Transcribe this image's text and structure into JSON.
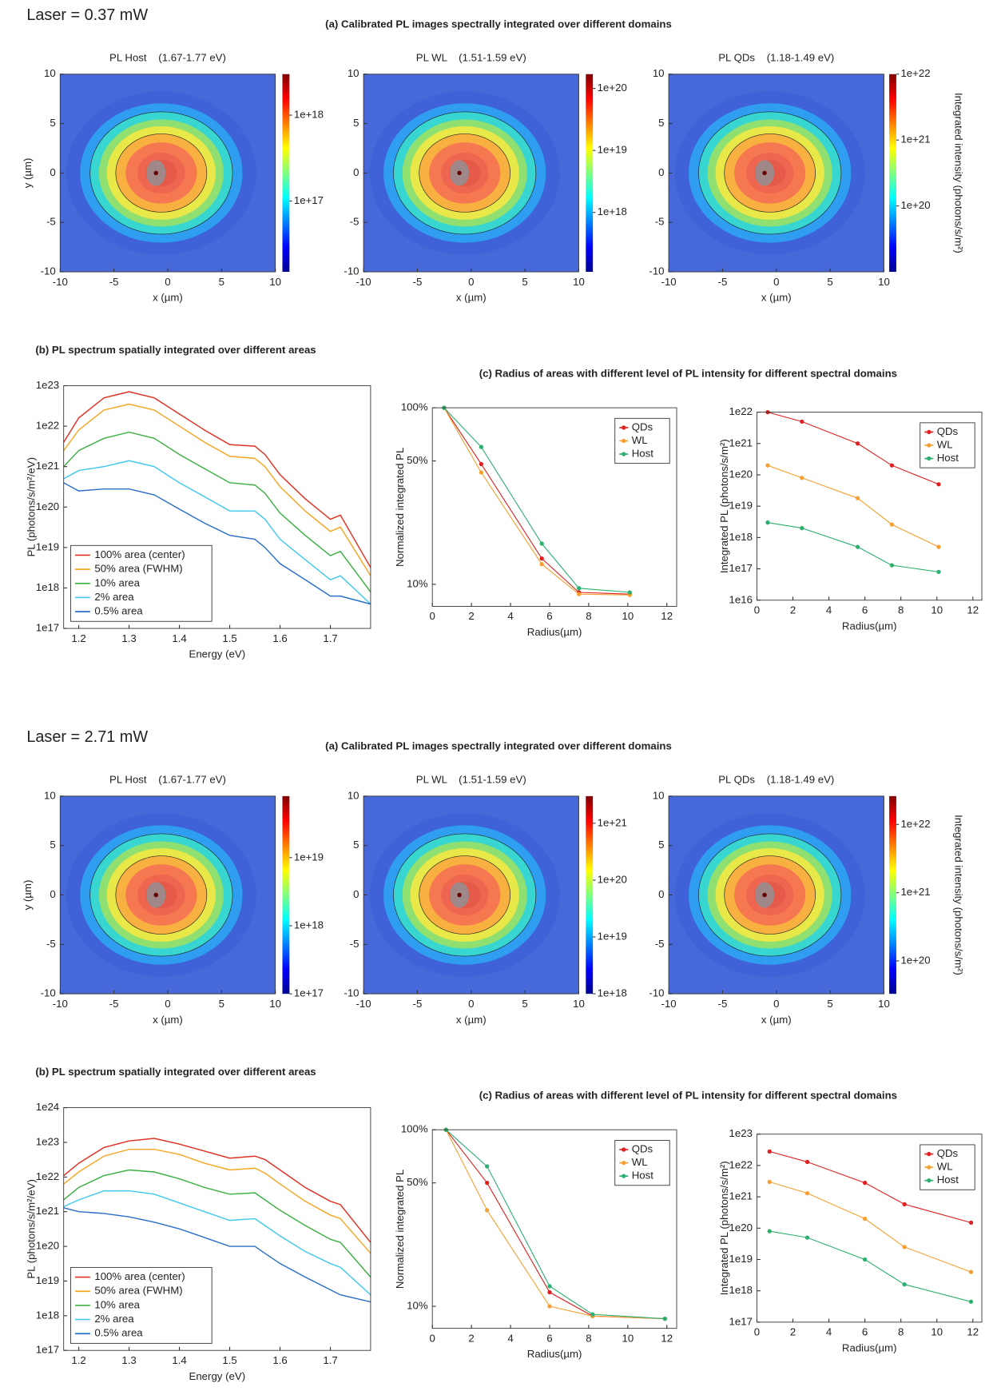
{
  "panels": [
    {
      "laser": "Laser = 0.37 mW",
      "heading_a": "(a) Calibrated PL images spectrally integrated over different domains",
      "heading_b": "(b) PL spectrum spatially integrated over different areas",
      "heading_c": "(c) Radius of areas with different level of PL intensity for different spectral domains"
    },
    {
      "laser": "Laser = 2.71 mW",
      "heading_a": "(a) Calibrated PL images spectrally integrated over different domains",
      "heading_b": "(b) PL spectrum spatially integrated over different areas",
      "heading_c": "(c) Radius of areas with different level of PL intensity for different spectral domains"
    }
  ],
  "chart_data": [
    {
      "type": "heatmap",
      "title": "PL Host    (1.67-1.77 eV)",
      "xlabel": "x (µm)",
      "ylabel": "y (µm)",
      "xlim": [
        -10,
        10
      ],
      "xticks": [
        -10,
        -5,
        0,
        5,
        10
      ],
      "ylim": [
        -10,
        10
      ],
      "yticks": [
        -10,
        -5,
        0,
        5,
        10
      ],
      "colorbar": {
        "log": true,
        "lim": [
          1.5e+16,
          3e+18
        ],
        "ticks": [
          {
            "value": 1e+17,
            "label": "1e+17"
          },
          {
            "value": 1e+18,
            "label": "1e+18"
          }
        ]
      }
    },
    {
      "type": "heatmap",
      "title": "PL WL    (1.51-1.59 eV)",
      "xlabel": "x (µm)",
      "xlim": [
        -10,
        10
      ],
      "xticks": [
        -10,
        -5,
        0,
        5,
        10
      ],
      "ylim": [
        -10,
        10
      ],
      "yticks": [
        -10,
        -5,
        0,
        5,
        10
      ],
      "colorbar": {
        "log": true,
        "lim": [
          1.1e+17,
          1.7e+20
        ],
        "ticks": [
          {
            "value": 1e+18,
            "label": "1e+18"
          },
          {
            "value": 1e+19,
            "label": "1e+19"
          },
          {
            "value": 1e+20,
            "label": "1e+20"
          }
        ]
      }
    },
    {
      "type": "heatmap",
      "title": "PL QDs    (1.18-1.49 eV)",
      "xlabel": "x (µm)",
      "xlim": [
        -10,
        10
      ],
      "xticks": [
        -10,
        -5,
        0,
        5,
        10
      ],
      "ylim": [
        -10,
        10
      ],
      "yticks": [
        -10,
        -5,
        0,
        5,
        10
      ],
      "colorbar": {
        "log": true,
        "lim": [
          1e+19,
          1e+22
        ],
        "label": "Integrated intensity (photons/s/m²)",
        "ticks": [
          {
            "value": 1e+20,
            "label": "1e+20"
          },
          {
            "value": 1e+21,
            "label": "1e+21"
          },
          {
            "value": 1e+22,
            "label": "1e+22"
          }
        ]
      }
    },
    {
      "type": "line",
      "xlabel": "Energy (eV)",
      "ylabel": "PL (photons/s/m²/eV)",
      "ylog": true,
      "legend": "lower left",
      "xlim": [
        1.17,
        1.78
      ],
      "xticks": [
        1.2,
        1.3,
        1.4,
        1.5,
        1.6,
        1.7
      ],
      "ylim": [
        1e+17,
        1e+23
      ],
      "yticks": [
        {
          "value": 1e+17,
          "label": "1e17"
        },
        {
          "value": 1e+18,
          "label": "1e18"
        },
        {
          "value": 1e+19,
          "label": "1e19"
        },
        {
          "value": 1e+20,
          "label": "1e20"
        },
        {
          "value": 1e+21,
          "label": "1e21"
        },
        {
          "value": 1e+22,
          "label": "1e22"
        },
        {
          "value": 1e+23,
          "label": "1e23"
        }
      ],
      "x": [
        1.17,
        1.2,
        1.25,
        1.3,
        1.35,
        1.4,
        1.45,
        1.5,
        1.55,
        1.57,
        1.6,
        1.65,
        1.7,
        1.72,
        1.78
      ],
      "series": [
        {
          "name": "100% area (center)",
          "color": "#e03020",
          "values": [
            4e+21,
            1.6e+22,
            5e+22,
            7.1e+22,
            5e+22,
            2e+22,
            8e+21,
            3.5e+21,
            3.2e+21,
            2e+21,
            6.3e+20,
            1.6e+20,
            5e+19,
            6.3e+19,
            3.2e+18
          ]
        },
        {
          "name": "50% area (FWHM)",
          "color": "#f5a623",
          "values": [
            2.5e+21,
            8e+21,
            2.5e+22,
            3.5e+22,
            2.5e+22,
            1e+22,
            4e+21,
            1.8e+21,
            1.6e+21,
            1e+21,
            3.2e+20,
            8e+19,
            2.5e+19,
            3.2e+19,
            2e+18
          ]
        },
        {
          "name": "10% area",
          "color": "#3cb043",
          "values": [
            1e+21,
            2.5e+21,
            5e+21,
            7.1e+21,
            5e+21,
            2e+21,
            8.9e+20,
            4e+20,
            3.5e+20,
            2.2e+20,
            7.1e+19,
            2e+19,
            6.3e+18,
            8e+18,
            8e+17
          ]
        },
        {
          "name": "2% area",
          "color": "#40c8f0",
          "values": [
            5e+20,
            8e+20,
            1e+21,
            1.4e+21,
            1e+21,
            4e+20,
            1.8e+20,
            8e+19,
            8e+19,
            5e+19,
            1.6e+19,
            5e+18,
            1.6e+18,
            2e+18,
            4e+17
          ]
        },
        {
          "name": "0.5% area",
          "color": "#2a6fc8",
          "values": [
            4e+20,
            2.5e+20,
            2.8e+20,
            2.8e+20,
            2e+20,
            8.9e+19,
            4e+19,
            2e+19,
            1.6e+19,
            1e+19,
            4e+18,
            1.6e+18,
            6.3e+17,
            6.3e+17,
            4e+17
          ]
        }
      ]
    },
    {
      "type": "line",
      "xlabel": "Radius(µm)",
      "ylabel": "Normalized integrated PL",
      "ylog": true,
      "legend": "upper right",
      "markers": true,
      "xlim": [
        0,
        12.5
      ],
      "xticks": [
        0,
        2,
        4,
        6,
        8,
        10,
        12
      ],
      "ylim": [
        7.5,
        100
      ],
      "yticks": [
        {
          "value": 10,
          "label": "10%"
        },
        {
          "value": 50,
          "label": "50%"
        },
        {
          "value": 100,
          "label": "100%"
        }
      ],
      "x": [
        0.6,
        2.5,
        5.6,
        7.5,
        10.1
      ],
      "series": [
        {
          "name": "QDs",
          "color": "#e02020",
          "values": [
            100,
            48,
            14,
            9,
            8.8
          ]
        },
        {
          "name": "WL",
          "color": "#f5a030",
          "values": [
            100,
            43,
            13,
            8.8,
            8.7
          ]
        },
        {
          "name": "Host",
          "color": "#2cb070",
          "values": [
            100,
            60,
            17,
            9.5,
            9
          ]
        }
      ]
    },
    {
      "type": "line",
      "xlabel": "Radius(µm)",
      "ylabel": "Integrated PL (photons/s/m²)",
      "ylog": true,
      "legend": "upper right",
      "markers": true,
      "xlim": [
        0,
        12.5
      ],
      "xticks": [
        0,
        2,
        4,
        6,
        8,
        10,
        12
      ],
      "ylim": [
        1e+16,
        1e+22
      ],
      "yticks": [
        {
          "value": 1e+16,
          "label": "1e16"
        },
        {
          "value": 1e+17,
          "label": "1e17"
        },
        {
          "value": 1e+18,
          "label": "1e18"
        },
        {
          "value": 1e+19,
          "label": "1e19"
        },
        {
          "value": 1e+20,
          "label": "1e20"
        },
        {
          "value": 1e+21,
          "label": "1e21"
        },
        {
          "value": 1e+22,
          "label": "1e22"
        }
      ],
      "x": [
        0.6,
        2.5,
        5.6,
        7.5,
        10.1
      ],
      "series": [
        {
          "name": "QDs",
          "color": "#e02020",
          "values": [
            1e+22,
            5e+21,
            1e+21,
            2e+20,
            5e+19
          ]
        },
        {
          "name": "WL",
          "color": "#f5a030",
          "values": [
            2e+20,
            8e+19,
            1.8e+19,
            2.6e+18,
            5e+17
          ]
        },
        {
          "name": "Host",
          "color": "#2cb070",
          "values": [
            3e+18,
            2e+18,
            5e+17,
            1.3e+17,
            8e+16
          ]
        }
      ]
    },
    {
      "type": "heatmap",
      "title": "PL Host    (1.67-1.77 eV)",
      "xlabel": "x (µm)",
      "ylabel": "y (µm)",
      "xlim": [
        -10,
        10
      ],
      "xticks": [
        -10,
        -5,
        0,
        5,
        10
      ],
      "ylim": [
        -10,
        10
      ],
      "yticks": [
        -10,
        -5,
        0,
        5,
        10
      ],
      "colorbar": {
        "log": true,
        "lim": [
          1e+17,
          8e+19
        ],
        "ticks": [
          {
            "value": 1e+17,
            "label": "1e+17"
          },
          {
            "value": 1e+18,
            "label": "1e+18"
          },
          {
            "value": 1e+19,
            "label": "1e+19"
          }
        ]
      }
    },
    {
      "type": "heatmap",
      "title": "PL WL    (1.51-1.59 eV)",
      "xlabel": "x (µm)",
      "xlim": [
        -10,
        10
      ],
      "xticks": [
        -10,
        -5,
        0,
        5,
        10
      ],
      "ylim": [
        -10,
        10
      ],
      "yticks": [
        -10,
        -5,
        0,
        5,
        10
      ],
      "colorbar": {
        "log": true,
        "lim": [
          1e+18,
          3e+21
        ],
        "ticks": [
          {
            "value": 1e+18,
            "label": "1e+18"
          },
          {
            "value": 1e+19,
            "label": "1e+19"
          },
          {
            "value": 1e+20,
            "label": "1e+20"
          },
          {
            "value": 1e+21,
            "label": "1e+21"
          }
        ]
      }
    },
    {
      "type": "heatmap",
      "title": "PL QDs    (1.18-1.49 eV)",
      "xlabel": "x (µm)",
      "xlim": [
        -10,
        10
      ],
      "xticks": [
        -10,
        -5,
        0,
        5,
        10
      ],
      "ylim": [
        -10,
        10
      ],
      "yticks": [
        -10,
        -5,
        0,
        5,
        10
      ],
      "colorbar": {
        "log": true,
        "lim": [
          3.3e+19,
          2.6e+22
        ],
        "label": "Integrated intensity (photons/s/m²)",
        "ticks": [
          {
            "value": 1e+20,
            "label": "1e+20"
          },
          {
            "value": 1e+21,
            "label": "1e+21"
          },
          {
            "value": 1e+22,
            "label": "1e+22"
          }
        ]
      }
    },
    {
      "type": "line",
      "xlabel": "Energy (eV)",
      "ylabel": "PL (photons/s/m²/eV)",
      "ylog": true,
      "legend": "lower left",
      "xlim": [
        1.17,
        1.78
      ],
      "xticks": [
        1.2,
        1.3,
        1.4,
        1.5,
        1.6,
        1.7
      ],
      "ylim": [
        1e+17,
        1e+24
      ],
      "yticks": [
        {
          "value": 1e+17,
          "label": "1e17"
        },
        {
          "value": 1e+18,
          "label": "1e18"
        },
        {
          "value": 1e+19,
          "label": "1e19"
        },
        {
          "value": 1e+20,
          "label": "1e20"
        },
        {
          "value": 1e+21,
          "label": "1e21"
        },
        {
          "value": 1e+22,
          "label": "1e22"
        },
        {
          "value": 1e+23,
          "label": "1e23"
        },
        {
          "value": 1e+24,
          "label": "1e24"
        }
      ],
      "x": [
        1.17,
        1.2,
        1.25,
        1.3,
        1.35,
        1.4,
        1.45,
        1.5,
        1.55,
        1.57,
        1.6,
        1.65,
        1.7,
        1.72,
        1.78
      ],
      "series": [
        {
          "name": "100% area (center)",
          "color": "#e03020",
          "values": [
            1.1e+22,
            2.5e+22,
            7.1e+22,
            1.1e+23,
            1.3e+23,
            8.9e+22,
            5.6e+22,
            3.5e+22,
            4e+22,
            3.2e+22,
            1.6e+22,
            5e+21,
            2e+21,
            1.6e+21,
            1.3e+20
          ]
        },
        {
          "name": "50% area (FWHM)",
          "color": "#f5a623",
          "values": [
            6.3e+21,
            1.4e+22,
            4e+22,
            6.3e+22,
            6.3e+22,
            4.5e+22,
            2.5e+22,
            1.6e+22,
            1.8e+22,
            1.3e+22,
            6.3e+21,
            2e+21,
            8e+20,
            6.3e+20,
            6.3e+19
          ]
        },
        {
          "name": "10% area",
          "color": "#3cb043",
          "values": [
            2.2e+21,
            5e+21,
            1.1e+22,
            1.6e+22,
            1.4e+22,
            8.9e+21,
            5e+21,
            3.2e+21,
            3.5e+21,
            2.2e+21,
            1.1e+21,
            4e+20,
            1.6e+20,
            1.3e+20,
            1.3e+19
          ]
        },
        {
          "name": "2% area",
          "color": "#40c8f0",
          "values": [
            1.4e+21,
            2.2e+21,
            4e+21,
            4e+21,
            3.2e+21,
            1.8e+21,
            1e+21,
            5.6e+20,
            6.3e+20,
            4e+20,
            2e+20,
            7.1e+19,
            3.2e+19,
            2.5e+19,
            4e+18
          ]
        },
        {
          "name": "0.5% area",
          "color": "#2a6fc8",
          "values": [
            1.3e+21,
            1e+21,
            8.9e+20,
            7.1e+20,
            5e+20,
            3.2e+20,
            1.8e+20,
            1e+20,
            1e+20,
            6.3e+19,
            3.2e+19,
            1.3e+19,
            5.6e+18,
            4e+18,
            2.5e+18
          ]
        }
      ]
    },
    {
      "type": "line",
      "xlabel": "Radius(µm)",
      "ylabel": "Normalized integrated PL",
      "ylog": true,
      "legend": "upper right",
      "markers": true,
      "xlim": [
        0,
        12.5
      ],
      "xticks": [
        0,
        2,
        4,
        6,
        8,
        10,
        12
      ],
      "ylim": [
        7.5,
        100
      ],
      "yticks": [
        {
          "value": 10,
          "label": "10%"
        },
        {
          "value": 50,
          "label": "50%"
        },
        {
          "value": 100,
          "label": "100%"
        }
      ],
      "x": [
        0.7,
        2.8,
        6,
        8.2,
        11.9
      ],
      "series": [
        {
          "name": "QDs",
          "color": "#e02020",
          "values": [
            100,
            50,
            12,
            8.8,
            8.5
          ]
        },
        {
          "name": "WL",
          "color": "#f5a030",
          "values": [
            100,
            35,
            10,
            8.8,
            8.5
          ]
        },
        {
          "name": "Host",
          "color": "#2cb070",
          "values": [
            100,
            62,
            13,
            9,
            8.5
          ]
        }
      ]
    },
    {
      "type": "line",
      "xlabel": "Radius(µm)",
      "ylabel": "Integrated PL (photons/s/m²)",
      "ylog": true,
      "legend": "upper right",
      "markers": true,
      "xlim": [
        0,
        12.5
      ],
      "xticks": [
        0,
        2,
        4,
        6,
        8,
        10,
        12
      ],
      "ylim": [
        1e+17,
        1e+23
      ],
      "yticks": [
        {
          "value": 1e+17,
          "label": "1e17"
        },
        {
          "value": 1e+18,
          "label": "1e18"
        },
        {
          "value": 1e+19,
          "label": "1e19"
        },
        {
          "value": 1e+20,
          "label": "1e20"
        },
        {
          "value": 1e+21,
          "label": "1e21"
        },
        {
          "value": 1e+22,
          "label": "1e22"
        },
        {
          "value": 1e+23,
          "label": "1e23"
        }
      ],
      "x": [
        0.7,
        2.8,
        6,
        8.2,
        11.9
      ],
      "series": [
        {
          "name": "QDs",
          "color": "#e02020",
          "values": [
            2.8e+22,
            1.3e+22,
            2.8e+21,
            5.8e+20,
            1.5e+20
          ]
        },
        {
          "name": "WL",
          "color": "#f5a030",
          "values": [
            3e+21,
            1.3e+21,
            2e+20,
            2.5e+19,
            4e+18
          ]
        },
        {
          "name": "Host",
          "color": "#2cb070",
          "values": [
            8e+19,
            5e+19,
            1e+19,
            1.6e+18,
            4.5e+17
          ]
        }
      ]
    }
  ]
}
